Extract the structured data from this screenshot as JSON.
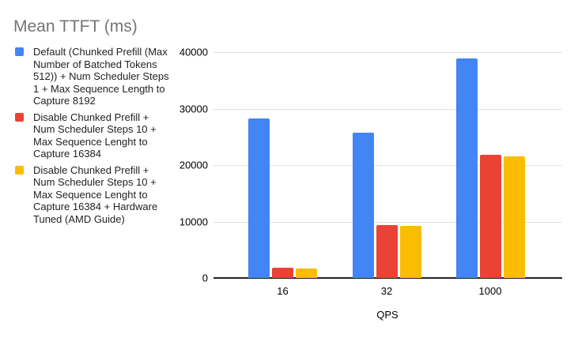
{
  "title": {
    "text": "Mean TTFT (ms)",
    "color": "#757575"
  },
  "legend": {
    "items": [
      {
        "label": "Default (Chunked Prefill (Max\nNumber of Batched Tokens\n512)) + Num Scheduler Steps\n1 + Max Sequence Length to\nCapture 8192",
        "color": "#4285F4",
        "swatch_icon": "square-icon"
      },
      {
        "label": "Disable Chunked Prefill +\nNum Scheduler Steps 10 +\nMax Sequence Lenght to\nCapture 16384",
        "color": "#EA4335",
        "swatch_icon": "square-icon"
      },
      {
        "label": "Disable Chunked Prefill +\nNum Scheduler Steps 10 +\nMax Sequence Lenght to\nCapture 16384 + Hardware\nTuned (AMD Guide)",
        "color": "#FBBC04",
        "swatch_icon": "square-icon"
      }
    ]
  },
  "chart_data": {
    "type": "bar",
    "title": "Mean TTFT (ms)",
    "xlabel": "QPS",
    "ylabel": "",
    "categories": [
      "16",
      "32",
      "1000"
    ],
    "series": [
      {
        "name": "Default (Chunked Prefill (Max Number of Batched Tokens 512)) + Num Scheduler Steps 1 + Max Sequence Length to Capture 8192",
        "color": "#4285F4",
        "values": [
          28200,
          25800,
          38900
        ]
      },
      {
        "name": "Disable Chunked Prefill + Num Scheduler Steps 10 + Max Sequence Lenght to Capture 16384",
        "color": "#EA4335",
        "values": [
          1800,
          9400,
          21800
        ]
      },
      {
        "name": "Disable Chunked Prefill + Num Scheduler Steps 10 + Max Sequence Lenght to Capture 16384 + Hardware Tuned (AMD Guide)",
        "color": "#FBBC04",
        "values": [
          1700,
          9200,
          21500
        ]
      }
    ],
    "ylim": [
      0,
      40000
    ],
    "yticks": [
      0,
      10000,
      20000,
      30000,
      40000
    ],
    "ytick_labels": [
      "0",
      "10000",
      "20000",
      "30000",
      "40000"
    ],
    "grid": true,
    "legend_position": "left",
    "colors": {
      "grid": "#e0e0e0",
      "axis": "#212121",
      "tick_text": "#000000"
    }
  }
}
